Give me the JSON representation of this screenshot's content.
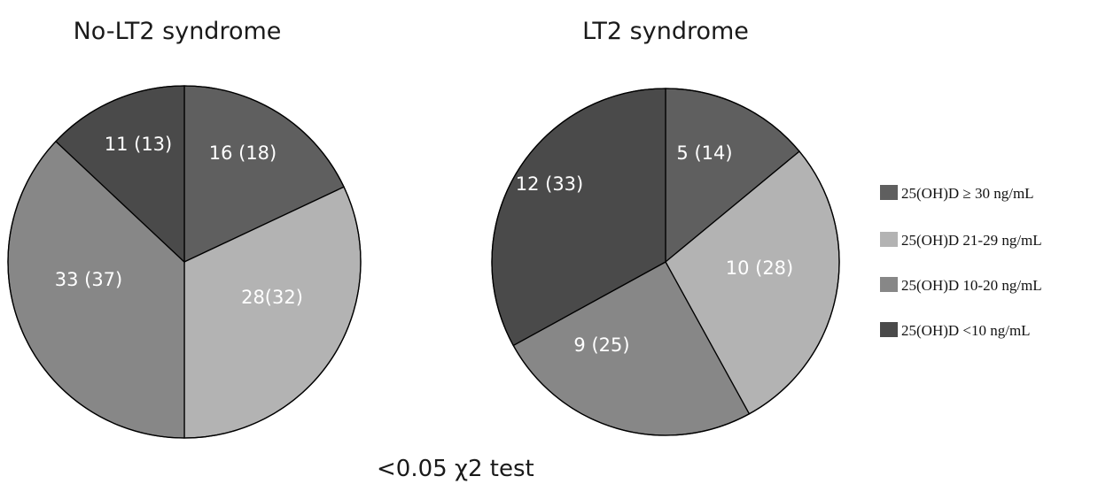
{
  "chart_data": [
    {
      "type": "pie",
      "title": "No-LT2 syndrome",
      "slices": [
        {
          "category": "25(OH)D ≥ 30 ng/mL",
          "value": 18,
          "label": "16 (18)"
        },
        {
          "category": "25(OH)D 21-29 ng/mL",
          "value": 32,
          "label": "28(32)"
        },
        {
          "category": "25(OH)D 10-20  ng/mL",
          "value": 37,
          "label": "33 (37)"
        },
        {
          "category": "25(OH)D <10 ng/mL",
          "value": 13,
          "label": "11 (13)"
        }
      ]
    },
    {
      "type": "pie",
      "title": "LT2 syndrome",
      "slices": [
        {
          "category": "25(OH)D ≥ 30 ng/mL",
          "value": 14,
          "label": "5 (14)"
        },
        {
          "category": "25(OH)D 21-29 ng/mL",
          "value": 28,
          "label": "10 (28)"
        },
        {
          "category": "25(OH)D 10-20  ng/mL",
          "value": 25,
          "label": "9 (25)"
        },
        {
          "category": "25(OH)D <10 ng/mL",
          "value": 33,
          "label": "12 (33)"
        }
      ]
    }
  ],
  "legend": {
    "placement": "right",
    "items": [
      {
        "label": "25(OH)D ≥ 30 ng/mL",
        "color": "#5f5f5f"
      },
      {
        "label": "25(OH)D 21-29 ng/mL",
        "color": "#b3b3b3"
      },
      {
        "label": "25(OH)D 10-20  ng/mL",
        "color": "#878787"
      },
      {
        "label": "25(OH)D <10 ng/mL",
        "color": "#4a4a4a"
      }
    ]
  },
  "footnote": "<0.05 χ2 test"
}
